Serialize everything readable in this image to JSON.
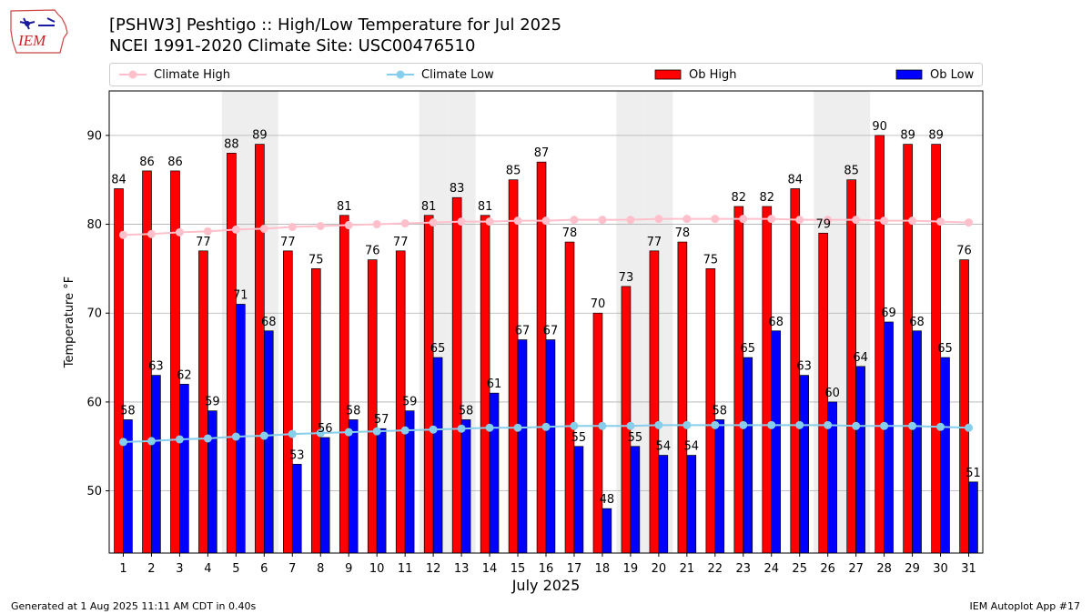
{
  "header": {
    "logo_text": "IEM",
    "title_line1": "[PSHW3] Peshtigo :: High/Low Temperature for Jul 2025",
    "title_line2": "NCEI 1991-2020 Climate Site: USC00476510"
  },
  "legend": {
    "climate_high": "Climate High",
    "climate_low": "Climate Low",
    "ob_high": "Ob High",
    "ob_low": "Ob Low"
  },
  "footer": {
    "generated": "Generated at 1 Aug 2025 11:11 AM CDT in 0.40s",
    "app": "IEM Autoplot App #17"
  },
  "colors": {
    "ob_high": "#ff0000",
    "ob_low": "#0000ff",
    "climate_high": "#ffc0cb",
    "climate_low": "#87ceeb",
    "weekend_shade": "#eeeeee",
    "grid": "#b0b0b0"
  },
  "chart_data": {
    "type": "bar",
    "xlabel": "July 2025",
    "ylabel": "Temperature °F",
    "ylim": [
      43,
      95
    ],
    "yticks": [
      50,
      60,
      70,
      80,
      90
    ],
    "grid": "horizontal",
    "legend_position": "top",
    "shaded_days": [
      5,
      6,
      12,
      13,
      19,
      20,
      26,
      27
    ],
    "categories": [
      1,
      2,
      3,
      4,
      5,
      6,
      7,
      8,
      9,
      10,
      11,
      12,
      13,
      14,
      15,
      16,
      17,
      18,
      19,
      20,
      21,
      22,
      23,
      24,
      25,
      26,
      27,
      28,
      29,
      30,
      31
    ],
    "series": [
      {
        "name": "Ob High",
        "kind": "bar",
        "values": [
          84,
          86,
          86,
          77,
          88,
          89,
          77,
          75,
          81,
          76,
          77,
          81,
          83,
          81,
          85,
          87,
          78,
          70,
          73,
          77,
          78,
          75,
          82,
          82,
          84,
          79,
          85,
          90,
          89,
          89,
          76
        ]
      },
      {
        "name": "Ob Low",
        "kind": "bar",
        "values": [
          58,
          63,
          62,
          59,
          71,
          68,
          53,
          56,
          58,
          57,
          59,
          65,
          58,
          61,
          67,
          67,
          55,
          48,
          55,
          54,
          54,
          58,
          65,
          68,
          63,
          60,
          64,
          69,
          68,
          65,
          51
        ]
      },
      {
        "name": "Climate High",
        "kind": "line",
        "values": [
          78.8,
          78.9,
          79.1,
          79.2,
          79.4,
          79.5,
          79.7,
          79.8,
          79.9,
          80.0,
          80.1,
          80.2,
          80.3,
          80.3,
          80.4,
          80.4,
          80.5,
          80.5,
          80.5,
          80.6,
          80.6,
          80.6,
          80.6,
          80.6,
          80.5,
          80.5,
          80.5,
          80.4,
          80.4,
          80.3,
          80.2
        ]
      },
      {
        "name": "Climate Low",
        "kind": "line",
        "values": [
          55.5,
          55.6,
          55.8,
          55.9,
          56.1,
          56.2,
          56.4,
          56.5,
          56.6,
          56.7,
          56.8,
          56.9,
          57.0,
          57.1,
          57.1,
          57.2,
          57.3,
          57.3,
          57.3,
          57.4,
          57.4,
          57.4,
          57.4,
          57.4,
          57.4,
          57.4,
          57.3,
          57.3,
          57.3,
          57.2,
          57.1
        ]
      }
    ]
  }
}
